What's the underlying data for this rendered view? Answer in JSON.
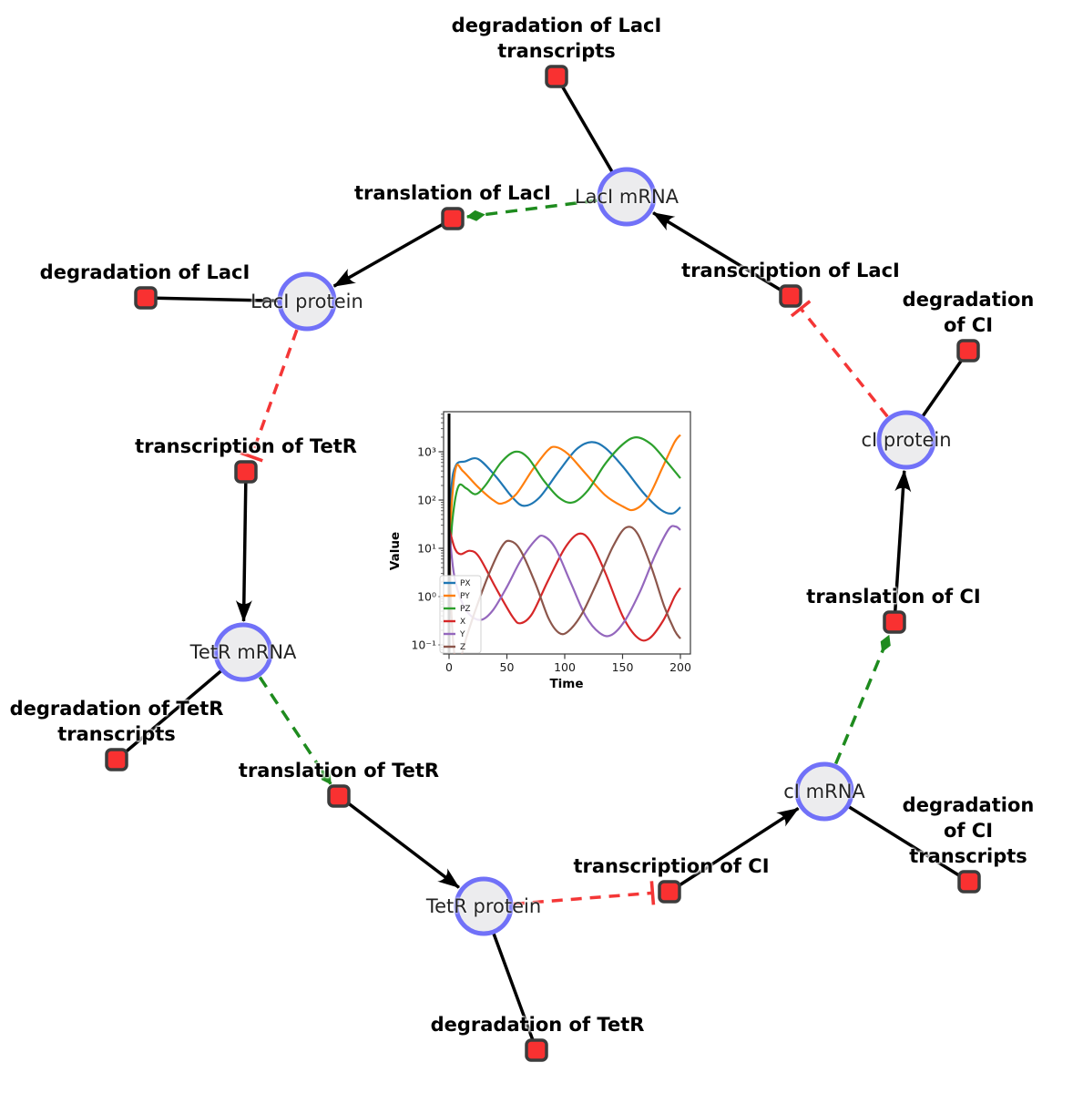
{
  "diagram": {
    "species": [
      {
        "id": "laci-mrna",
        "label": "LacI mRNA"
      },
      {
        "id": "laci-protein",
        "label": "LacI protein"
      },
      {
        "id": "ci-protein",
        "label": "cI protein"
      },
      {
        "id": "tetr-mrna",
        "label": "TetR mRNA"
      },
      {
        "id": "tetr-protein",
        "label": "TetR protein"
      },
      {
        "id": "ci-mrna",
        "label": "cI mRNA"
      }
    ],
    "reactions": [
      {
        "id": "degradation-laci-transcripts",
        "label": "degradation of LacI\ntranscripts"
      },
      {
        "id": "translation-laci",
        "label": "translation of LacI"
      },
      {
        "id": "transcription-laci",
        "label": "transcription of LacI"
      },
      {
        "id": "degradation-laci",
        "label": "degradation of LacI"
      },
      {
        "id": "degradation-ci",
        "label": "degradation of CI"
      },
      {
        "id": "transcription-tetr",
        "label": "transcription of TetR"
      },
      {
        "id": "translation-ci",
        "label": "translation of CI"
      },
      {
        "id": "degradation-tetr-transcripts",
        "label": "degradation of TetR\ntranscripts"
      },
      {
        "id": "translation-tetr",
        "label": "translation of TetR"
      },
      {
        "id": "transcription-ci",
        "label": "transcription of CI"
      },
      {
        "id": "degradation-ci-transcripts",
        "label": "degradation of CI\ntranscripts"
      },
      {
        "id": "degradation-tetr",
        "label": "degradation of TetR"
      }
    ],
    "legend_semantics": {
      "species_node": "circle, light gray fill, periwinkle blue ring",
      "reaction_node": "small red rounded square, dark border",
      "black_solid_edge": "reactant/product flow (arrow into product species)",
      "green_dashed_edge": "modifier: mRNA activates translation reaction (diamond head)",
      "red_dashed_edge": "inhibition: protein represses transcription reaction (tee head)"
    },
    "colors": {
      "species_fill": "#ececee",
      "species_stroke": "#7171f8",
      "reaction_fill": "#f93131",
      "reaction_stroke": "#3c3c3c",
      "edge_black": "#000000",
      "edge_green": "#1e8b1e",
      "edge_red": "#f43636"
    }
  },
  "chart_data": {
    "type": "line",
    "title": "",
    "xlabel": "Time",
    "ylabel": "Value",
    "x_range": [
      0,
      200
    ],
    "y_scale": "log10",
    "y_range_log10": [
      -1,
      3
    ],
    "xtick_labels": [
      "0",
      "50",
      "100",
      "150",
      "200"
    ],
    "ytick_labels": [
      "10⁻¹",
      "10⁰",
      "10¹",
      "10²",
      "10³"
    ],
    "legend_position": "lower left",
    "grid": false,
    "initial_marker_x": 0,
    "series": [
      {
        "name": "PX",
        "color": "#1f77b4",
        "points": [
          [
            0,
            0.5
          ],
          [
            2,
            2.2
          ],
          [
            6,
            2.72
          ],
          [
            14,
            2.8
          ],
          [
            25,
            2.85
          ],
          [
            40,
            2.5
          ],
          [
            55,
            2.05
          ],
          [
            65,
            1.88
          ],
          [
            78,
            2.05
          ],
          [
            95,
            2.6
          ],
          [
            110,
            3.05
          ],
          [
            123,
            3.2
          ],
          [
            135,
            3.08
          ],
          [
            150,
            2.7
          ],
          [
            168,
            2.15
          ],
          [
            183,
            1.8
          ],
          [
            193,
            1.72
          ],
          [
            200,
            1.85
          ]
        ]
      },
      {
        "name": "PY",
        "color": "#ff7f0e",
        "points": [
          [
            0,
            0.5
          ],
          [
            2,
            1.8
          ],
          [
            6,
            2.68
          ],
          [
            12,
            2.6
          ],
          [
            25,
            2.27
          ],
          [
            38,
            2.0
          ],
          [
            46,
            1.93
          ],
          [
            58,
            2.12
          ],
          [
            72,
            2.62
          ],
          [
            85,
            3.02
          ],
          [
            92,
            3.1
          ],
          [
            103,
            2.95
          ],
          [
            118,
            2.55
          ],
          [
            135,
            2.1
          ],
          [
            150,
            1.87
          ],
          [
            160,
            1.8
          ],
          [
            172,
            2.05
          ],
          [
            185,
            2.7
          ],
          [
            195,
            3.2
          ],
          [
            200,
            3.35
          ]
        ]
      },
      {
        "name": "PZ",
        "color": "#2ca02c",
        "points": [
          [
            0,
            0.5
          ],
          [
            3,
            1.6
          ],
          [
            8,
            2.28
          ],
          [
            15,
            2.24
          ],
          [
            23,
            2.12
          ],
          [
            32,
            2.32
          ],
          [
            45,
            2.78
          ],
          [
            57,
            3.0
          ],
          [
            68,
            2.88
          ],
          [
            82,
            2.4
          ],
          [
            95,
            2.05
          ],
          [
            107,
            1.95
          ],
          [
            120,
            2.2
          ],
          [
            135,
            2.75
          ],
          [
            150,
            3.15
          ],
          [
            162,
            3.3
          ],
          [
            175,
            3.15
          ],
          [
            188,
            2.8
          ],
          [
            200,
            2.45
          ]
        ]
      },
      {
        "name": "X",
        "color": "#d62728",
        "points": [
          [
            0,
            1.42
          ],
          [
            5,
            1.0
          ],
          [
            10,
            0.88
          ],
          [
            18,
            0.95
          ],
          [
            26,
            0.82
          ],
          [
            40,
            0.2
          ],
          [
            55,
            -0.42
          ],
          [
            62,
            -0.55
          ],
          [
            72,
            -0.35
          ],
          [
            85,
            0.3
          ],
          [
            100,
            1.0
          ],
          [
            112,
            1.3
          ],
          [
            122,
            1.15
          ],
          [
            135,
            0.5
          ],
          [
            150,
            -0.4
          ],
          [
            163,
            -0.85
          ],
          [
            173,
            -0.87
          ],
          [
            185,
            -0.5
          ],
          [
            195,
            0.0
          ],
          [
            200,
            0.18
          ]
        ]
      },
      {
        "name": "Y",
        "color": "#9467bd",
        "points": [
          [
            0,
            1.42
          ],
          [
            4,
            0.5
          ],
          [
            10,
            -0.05
          ],
          [
            18,
            -0.38
          ],
          [
            28,
            -0.48
          ],
          [
            38,
            -0.28
          ],
          [
            50,
            0.2
          ],
          [
            62,
            0.75
          ],
          [
            75,
            1.18
          ],
          [
            82,
            1.25
          ],
          [
            92,
            1.0
          ],
          [
            105,
            0.3
          ],
          [
            118,
            -0.4
          ],
          [
            130,
            -0.75
          ],
          [
            140,
            -0.8
          ],
          [
            152,
            -0.5
          ],
          [
            165,
            0.1
          ],
          [
            178,
            0.85
          ],
          [
            190,
            1.4
          ],
          [
            196,
            1.45
          ],
          [
            200,
            1.38
          ]
        ]
      },
      {
        "name": "Z",
        "color": "#8c564b",
        "points": [
          [
            0,
            1.42
          ],
          [
            2,
            -0.3
          ],
          [
            5,
            -1.25
          ],
          [
            9,
            -1.35
          ],
          [
            15,
            -0.85
          ],
          [
            24,
            -0.2
          ],
          [
            35,
            0.5
          ],
          [
            46,
            1.05
          ],
          [
            53,
            1.15
          ],
          [
            62,
            0.95
          ],
          [
            75,
            0.25
          ],
          [
            86,
            -0.45
          ],
          [
            95,
            -0.75
          ],
          [
            103,
            -0.72
          ],
          [
            115,
            -0.35
          ],
          [
            128,
            0.3
          ],
          [
            142,
            1.05
          ],
          [
            153,
            1.43
          ],
          [
            163,
            1.3
          ],
          [
            175,
            0.6
          ],
          [
            186,
            -0.2
          ],
          [
            195,
            -0.7
          ],
          [
            200,
            -0.87
          ]
        ]
      }
    ]
  }
}
